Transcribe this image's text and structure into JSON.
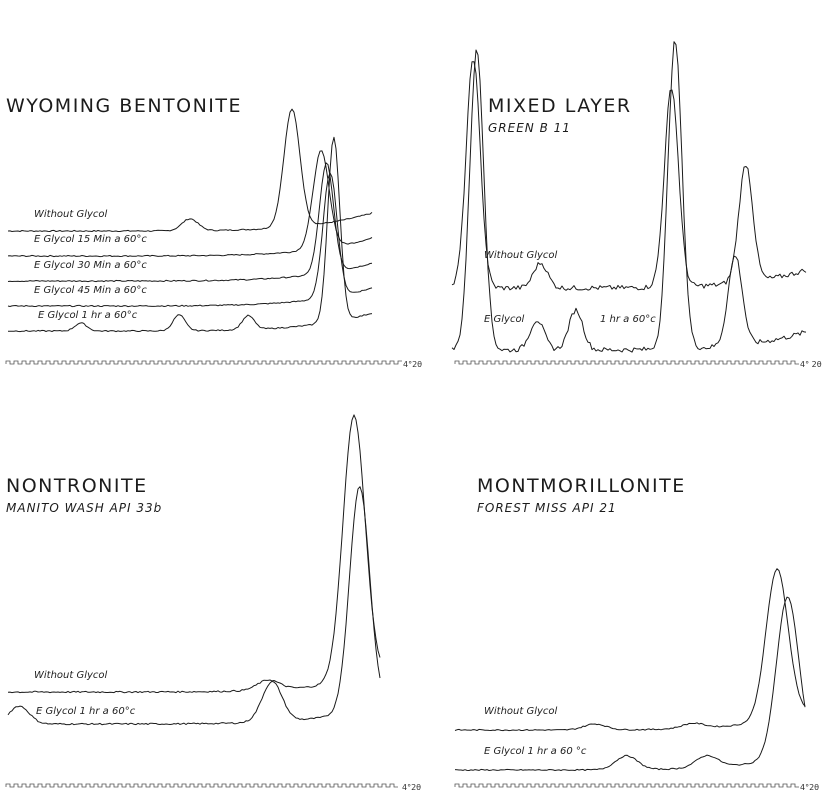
{
  "chart_data": [
    {
      "type": "line",
      "title": "WYOMING BENTONITE",
      "subtitle": "",
      "axis_label": "4°2θ",
      "series": [
        {
          "name": "Without Glycol",
          "peaks": [
            {
              "x": 0.5,
              "h": 12
            },
            {
              "x": 0.78,
              "h": 118
            }
          ]
        },
        {
          "name": "E Glycol 15 Min a 60°c",
          "peaks": [
            {
              "x": 0.86,
              "h": 98
            }
          ]
        },
        {
          "name": "E Glycol 30 Min a 60°c",
          "peaks": [
            {
              "x": 0.875,
              "h": 110
            }
          ]
        },
        {
          "name": "E Glycol 45 Min a 60°c",
          "peaks": [
            {
              "x": 0.885,
              "h": 125
            }
          ]
        },
        {
          "name": "E Glycol 1 hr a 60°c",
          "peaks": [
            {
              "x": 0.2,
              "h": 8
            },
            {
              "x": 0.47,
              "h": 16
            },
            {
              "x": 0.66,
              "h": 14
            },
            {
              "x": 0.895,
              "h": 185
            }
          ]
        }
      ]
    },
    {
      "type": "line",
      "title": "MIXED LAYER",
      "subtitle": "GREEN B 11",
      "axis_label": "4° 2θ",
      "series": [
        {
          "name": "Without Glycol",
          "peaks": [
            {
              "x": 0.06,
              "h": 230
            },
            {
              "x": 0.25,
              "h": 25
            },
            {
              "x": 0.62,
              "h": 200
            },
            {
              "x": 0.83,
              "h": 118
            }
          ]
        },
        {
          "name": "E Glycol 1 hr a 60°c",
          "peaks": [
            {
              "x": 0.07,
              "h": 300
            },
            {
              "x": 0.24,
              "h": 30
            },
            {
              "x": 0.35,
              "h": 40
            },
            {
              "x": 0.63,
              "h": 308
            },
            {
              "x": 0.8,
              "h": 90
            }
          ]
        }
      ]
    },
    {
      "type": "line",
      "title": "NONTRONITE",
      "subtitle": "MANITO WASH API 33b",
      "axis_label": "4°2θ",
      "series": [
        {
          "name": "Without Glycol",
          "peaks": [
            {
              "x": 0.7,
              "h": 10
            },
            {
              "x": 0.93,
              "h": 265
            }
          ]
        },
        {
          "name": "E Glycol 1 hr a 60°c",
          "peaks": [
            {
              "x": 0.03,
              "h": 18
            },
            {
              "x": 0.71,
              "h": 40
            },
            {
              "x": 0.945,
              "h": 225
            }
          ]
        }
      ]
    },
    {
      "type": "line",
      "title": "MONTMORILLONITE",
      "subtitle": "FOREST MISS API 21",
      "axis_label": "4°2θ",
      "series": [
        {
          "name": "Without Glycol",
          "peaks": [
            {
              "x": 0.4,
              "h": 6
            },
            {
              "x": 0.68,
              "h": 5
            },
            {
              "x": 0.92,
              "h": 150
            }
          ]
        },
        {
          "name": "E Glycol 1 hr a 60 °c",
          "peaks": [
            {
              "x": 0.49,
              "h": 14
            },
            {
              "x": 0.72,
              "h": 12
            },
            {
              "x": 0.95,
              "h": 160
            }
          ]
        }
      ]
    }
  ]
}
